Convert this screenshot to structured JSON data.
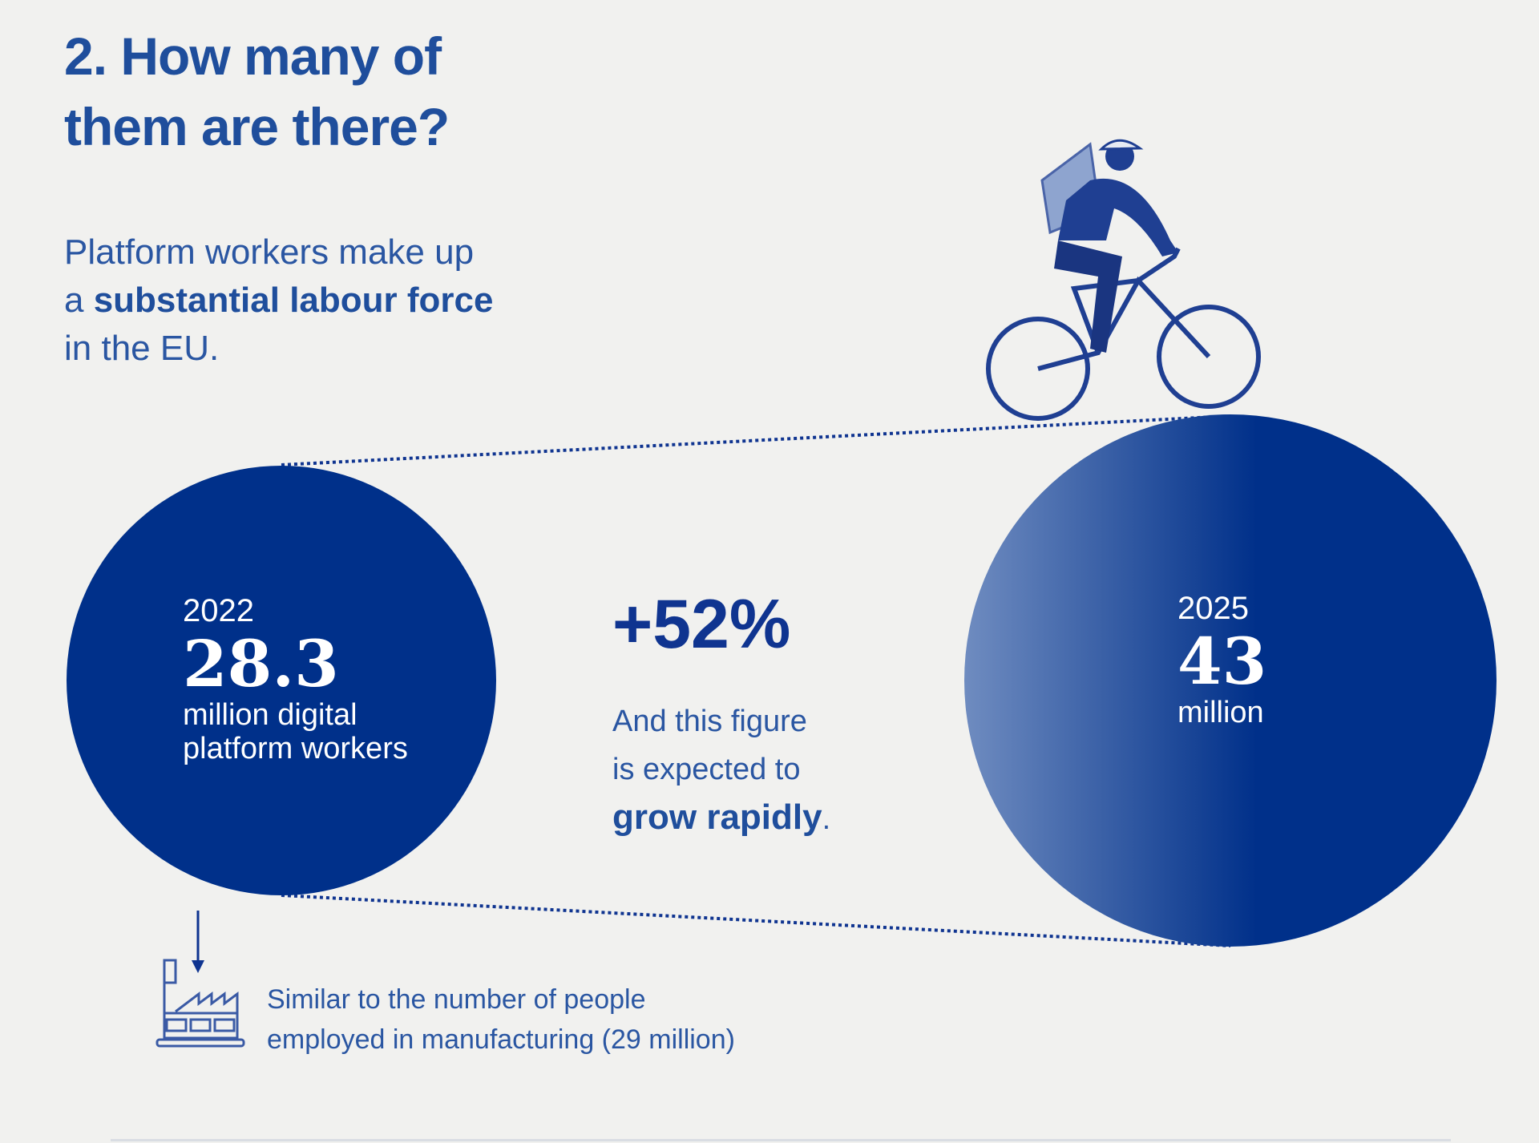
{
  "title": {
    "line1": "2. How many of",
    "line2": "them are there?"
  },
  "subtitle": {
    "pre": "Platform workers make up",
    "a": "a ",
    "bold": "substantial labour force",
    "post": "in the EU."
  },
  "left_circle": {
    "year": "2022",
    "value": "28.3",
    "line1": "million digital",
    "line2": "platform workers"
  },
  "growth": {
    "percent": "+52%",
    "line1": "And this figure",
    "line2": "is expected to",
    "bold": "grow rapidly",
    "period": "."
  },
  "right_circle": {
    "year": "2025",
    "value": "43",
    "unit": "million"
  },
  "footnote": {
    "line1": "Similar to the number of people",
    "line2": "employed in manufacturing (29 million)"
  },
  "icons": [
    "cyclist-courier-illustration",
    "factory-icon",
    "arrow-down-icon"
  ],
  "colors": {
    "background": "#f1f1ef",
    "circle": "#00308a",
    "title": "#1f4e9c",
    "gradient_light": "#6f8cc0"
  }
}
